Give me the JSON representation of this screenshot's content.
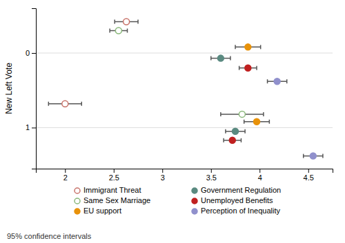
{
  "chart_data": {
    "type": "scatter",
    "y_label": "New Left Vote",
    "xlim": [
      1.7,
      4.75
    ],
    "ylim": [
      1.55,
      -0.6
    ],
    "xticks": [
      2,
      2.5,
      3,
      3.5,
      4,
      4.5
    ],
    "yticks": [
      0,
      1
    ],
    "grid": "y",
    "legend": "bottom",
    "annotations": [
      "95% confidence intervals"
    ],
    "series": [
      {
        "name": "Immigrant Threat",
        "color": "#c8736a",
        "marker": "circle-open",
        "x": [
          2.63,
          2.0
        ],
        "values": [
          -0.42,
          0.68
        ],
        "xerr": [
          0.12,
          0.17
        ]
      },
      {
        "name": "Same Sex Marriage",
        "color": "#8ab87a",
        "marker": "circle-open",
        "x": [
          2.55,
          3.82
        ],
        "values": [
          -0.3,
          0.82
        ],
        "xerr": [
          0.09,
          0.22
        ]
      },
      {
        "name": "EU support",
        "color": "#e8920a",
        "marker": "circle",
        "x": [
          3.88,
          3.97
        ],
        "values": [
          -0.08,
          0.92
        ],
        "xerr": [
          0.13,
          0.13
        ]
      },
      {
        "name": "Government Regulation",
        "color": "#5a8a80",
        "marker": "circle",
        "x": [
          3.6,
          3.75
        ],
        "values": [
          0.07,
          1.05
        ],
        "xerr": [
          0.1,
          0.1
        ]
      },
      {
        "name": "Unemployed Benefits",
        "color": "#c02020",
        "marker": "circle",
        "x": [
          3.88,
          3.72
        ],
        "values": [
          0.2,
          1.17
        ],
        "xerr": [
          0.09,
          0.09
        ]
      },
      {
        "name": "Perception of Inequality",
        "color": "#9090cc",
        "marker": "circle",
        "x": [
          4.18,
          4.55
        ],
        "values": [
          0.38,
          1.38
        ],
        "xerr": [
          0.1,
          0.1
        ]
      }
    ]
  }
}
